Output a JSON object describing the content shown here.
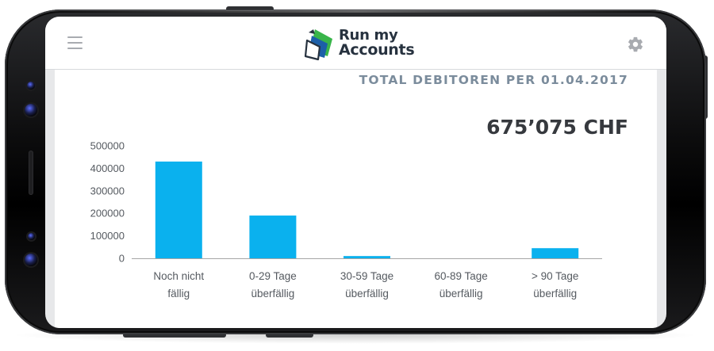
{
  "app": {
    "logo_line1": "Run my",
    "logo_line2": "Accounts",
    "brand_colors": {
      "green": "#39b54a",
      "blue": "#1c5fa8",
      "navy": "#27323f"
    }
  },
  "header": {
    "menu_icon": "hamburger-menu-icon",
    "settings_icon": "gear-icon"
  },
  "report": {
    "title": "TOTAL DEBITOREN PER 01.04.2017",
    "amount": "675’075 CHF"
  },
  "chart_data": {
    "type": "bar",
    "categories": [
      [
        "Noch nicht",
        "fällig"
      ],
      [
        "0-29 Tage",
        "überfällig"
      ],
      [
        "30-59 Tage",
        "überfällig"
      ],
      [
        "60-89 Tage",
        "überfällig"
      ],
      [
        "> 90 Tage",
        "überfällig"
      ]
    ],
    "values": [
      430000,
      190000,
      10000,
      0,
      45000
    ],
    "ylim": [
      0,
      500000
    ],
    "yticks": [
      0,
      100000,
      200000,
      300000,
      400000,
      500000
    ],
    "ytick_labels": [
      "0",
      "100000",
      "200000",
      "300000",
      "400000",
      "500000"
    ],
    "bar_color": "#0ab1ee",
    "grid": false
  }
}
